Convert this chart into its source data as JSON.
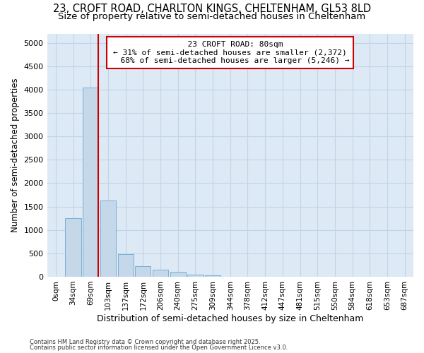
{
  "title_line1": "23, CROFT ROAD, CHARLTON KINGS, CHELTENHAM, GL53 8LD",
  "title_line2": "Size of property relative to semi-detached houses in Cheltenham",
  "xlabel": "Distribution of semi-detached houses by size in Cheltenham",
  "ylabel": "Number of semi-detached properties",
  "categories": [
    "0sqm",
    "34sqm",
    "69sqm",
    "103sqm",
    "137sqm",
    "172sqm",
    "206sqm",
    "240sqm",
    "275sqm",
    "309sqm",
    "344sqm",
    "378sqm",
    "412sqm",
    "447sqm",
    "481sqm",
    "515sqm",
    "550sqm",
    "584sqm",
    "618sqm",
    "653sqm",
    "687sqm"
  ],
  "values": [
    5,
    1250,
    4050,
    1630,
    480,
    220,
    150,
    100,
    50,
    30,
    0,
    0,
    0,
    0,
    0,
    0,
    0,
    0,
    0,
    0,
    0
  ],
  "bar_color": "#c5d8ea",
  "bar_edge_color": "#7bafd4",
  "grid_color": "#c0d4e8",
  "background_color": "#ddeaf5",
  "property_label": "23 CROFT ROAD: 80sqm",
  "pct_smaller": 31,
  "pct_larger": 68,
  "count_smaller": 2372,
  "count_larger": 5246,
  "annotation_box_color": "#cc0000",
  "vline_color": "#cc0000",
  "ylim": [
    0,
    5200
  ],
  "yticks": [
    0,
    500,
    1000,
    1500,
    2000,
    2500,
    3000,
    3500,
    4000,
    4500,
    5000
  ],
  "footnote1": "Contains HM Land Registry data © Crown copyright and database right 2025.",
  "footnote2": "Contains public sector information licensed under the Open Government Licence v3.0.",
  "title_fontsize": 10.5,
  "subtitle_fontsize": 9.5,
  "bar_width": 0.9
}
